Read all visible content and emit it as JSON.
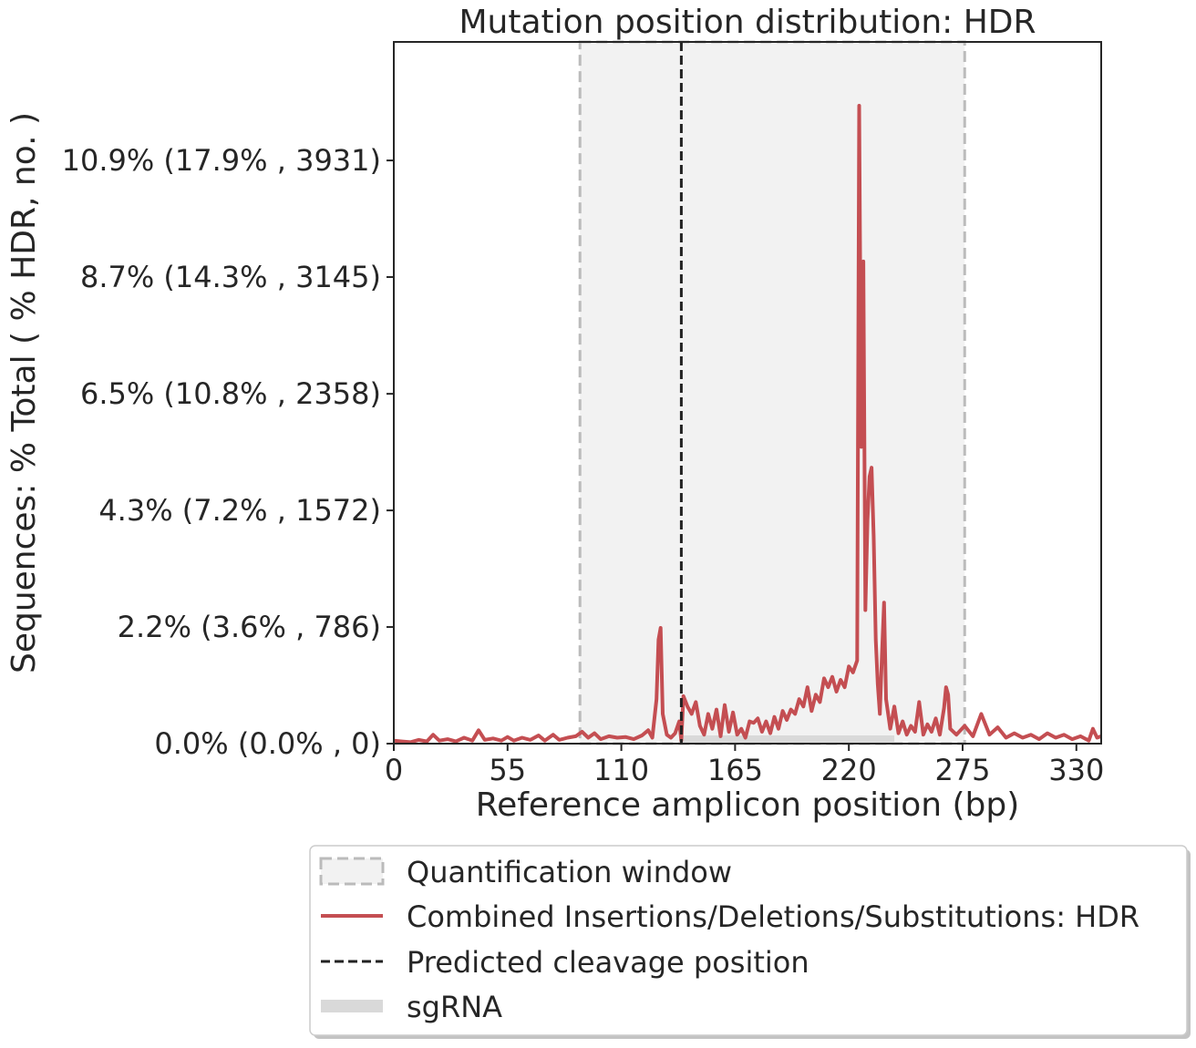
{
  "chart_data": {
    "type": "line",
    "title": "Mutation position distribution: HDR",
    "x_label": "Reference amplicon position (bp)",
    "y_label": "Sequences: % Total ( % HDR, no. )",
    "xlim": [
      0,
      342
    ],
    "xticks": [
      0,
      55,
      110,
      165,
      220,
      275,
      330
    ],
    "ylim": [
      0,
      4730
    ],
    "yticks": [
      {
        "value": 0,
        "label": "0.0% (0.0% , 0)"
      },
      {
        "value": 786,
        "label": "2.2% (3.6% , 786)"
      },
      {
        "value": 1572,
        "label": "4.3% (7.2% , 1572)"
      },
      {
        "value": 2358,
        "label": "6.5% (10.8% , 2358)"
      },
      {
        "value": 3145,
        "label": "8.7% (14.3% , 3145)"
      },
      {
        "value": 3931,
        "label": "10.9% (17.9% , 3931)"
      }
    ],
    "quantification_window": {
      "label": "Quantification window",
      "range": [
        90,
        276
      ],
      "color": "#bbbbbb",
      "fill": "#f2f2f2"
    },
    "cleavage_position": {
      "label": "Predicted cleavage position",
      "x": 139,
      "color": "#222222"
    },
    "sgrna": {
      "label": "sgRNA",
      "range": [
        138,
        242
      ],
      "color": "#d9d9d9"
    },
    "series": [
      {
        "name": "Combined Insertions/Deletions/Substitutions: HDR",
        "color": "#c44e52",
        "x": [
          0,
          4,
          8,
          12,
          16,
          19,
          22,
          26,
          30,
          34,
          38,
          41,
          44,
          48,
          52,
          55,
          58,
          62,
          66,
          70,
          73,
          77,
          80,
          84,
          88,
          91,
          94,
          97,
          100,
          104,
          108,
          112,
          116,
          120,
          123,
          125,
          127,
          128,
          129,
          130,
          132,
          134,
          136,
          138,
          139,
          140,
          142,
          144,
          146,
          148,
          150,
          152,
          154,
          156,
          158,
          160,
          162,
          164,
          166,
          168,
          170,
          172,
          174,
          176,
          178,
          180,
          182,
          184,
          186,
          188,
          190,
          192,
          194,
          196,
          198,
          200,
          202,
          204,
          206,
          208,
          210,
          212,
          214,
          216,
          218,
          220,
          222,
          224,
          225,
          226,
          227,
          228,
          229,
          230,
          231,
          232,
          233,
          234,
          235,
          236,
          237,
          238,
          240,
          242,
          244,
          246,
          248,
          250,
          252,
          254,
          256,
          258,
          260,
          262,
          264,
          266,
          267,
          268,
          269,
          272,
          276,
          280,
          284,
          288,
          292,
          296,
          300,
          304,
          308,
          312,
          316,
          320,
          324,
          328,
          332,
          336,
          338,
          340,
          342
        ],
        "values": [
          20,
          15,
          10,
          25,
          15,
          60,
          20,
          30,
          15,
          40,
          20,
          90,
          25,
          35,
          20,
          45,
          20,
          40,
          25,
          55,
          20,
          60,
          25,
          40,
          50,
          80,
          40,
          70,
          30,
          50,
          40,
          45,
          30,
          55,
          90,
          40,
          300,
          700,
          780,
          200,
          60,
          40,
          70,
          150,
          20,
          320,
          250,
          200,
          280,
          120,
          60,
          200,
          100,
          230,
          50,
          260,
          80,
          210,
          60,
          100,
          40,
          150,
          140,
          170,
          80,
          150,
          70,
          180,
          100,
          220,
          160,
          230,
          200,
          300,
          250,
          380,
          220,
          330,
          280,
          440,
          380,
          450,
          350,
          430,
          380,
          520,
          480,
          560,
          4300,
          2000,
          3250,
          900,
          1500,
          1800,
          1860,
          1400,
          700,
          400,
          200,
          600,
          950,
          300,
          100,
          250,
          70,
          150,
          60,
          120,
          80,
          280,
          60,
          130,
          80,
          170,
          60,
          240,
          380,
          330,
          100,
          60,
          120,
          50,
          200,
          60,
          110,
          40,
          70,
          40,
          60,
          30,
          70,
          40,
          60,
          30,
          50,
          20,
          100,
          40,
          50
        ]
      }
    ]
  }
}
